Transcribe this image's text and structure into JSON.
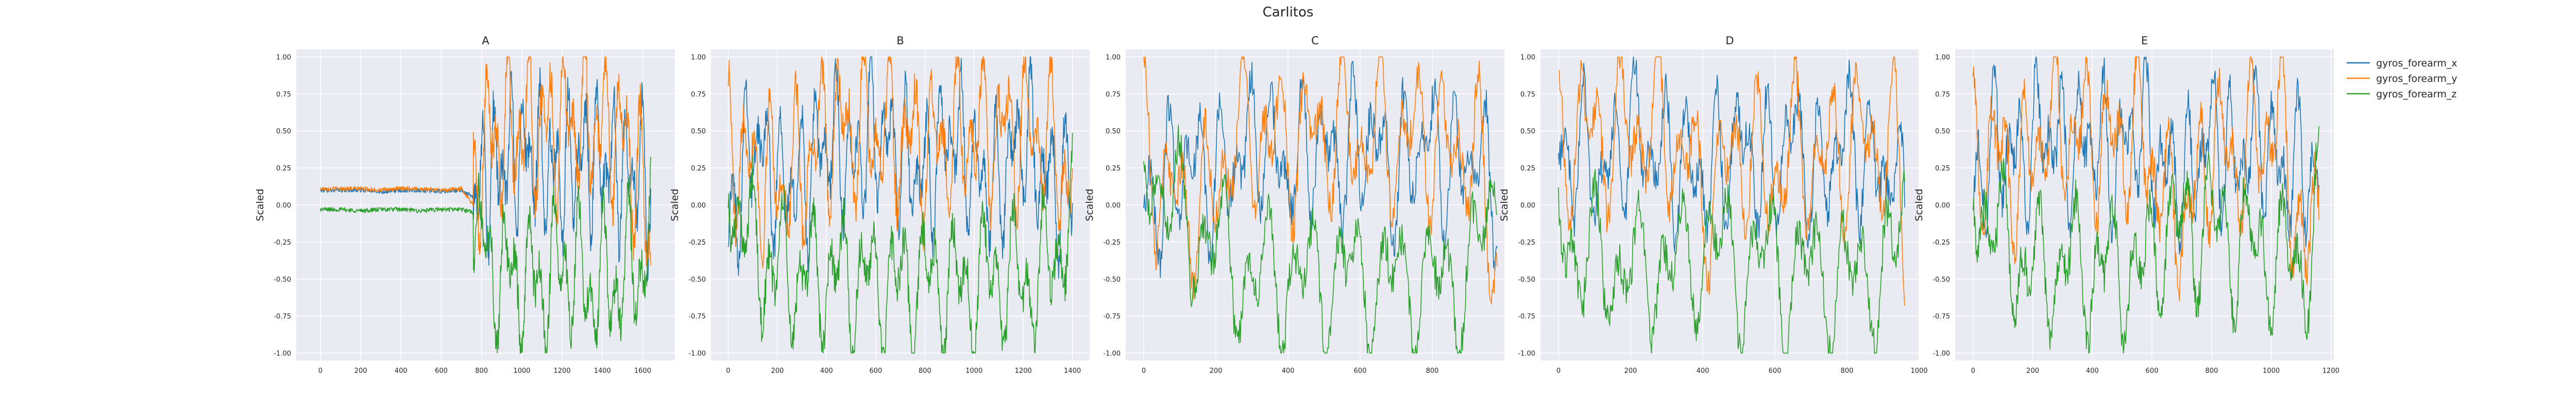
{
  "figure_title": "Carlitos",
  "colors": {
    "gyros_forearm_x": "#1f77b4",
    "gyros_forearm_y": "#ff7f0e",
    "gyros_forearm_z": "#2ca02c",
    "panel_background": "#eaeaf2",
    "grid": "#ffffff"
  },
  "legend": {
    "placement": "outside-right-top",
    "entries": [
      "gyros_forearm_x",
      "gyros_forearm_y",
      "gyros_forearm_z"
    ]
  },
  "chart_data": [
    {
      "type": "line",
      "title": "A",
      "xlabel": "",
      "ylabel": "Scaled",
      "n": 1640,
      "xlim": [
        -120,
        1760
      ],
      "ylim": [
        -1.05,
        1.05
      ],
      "grid": true,
      "xticks": [
        0,
        200,
        400,
        600,
        800,
        1000,
        1200,
        1400,
        1600
      ],
      "yticks": [
        -1.0,
        -0.75,
        -0.5,
        -0.25,
        0.0,
        0.25,
        0.5,
        0.75,
        1.0
      ],
      "series": [
        {
          "name": "gyros_forearm_x",
          "x": [
            0,
            100,
            200,
            300,
            400,
            500,
            600,
            700,
            760,
            800,
            900,
            1000,
            1100,
            1200,
            1300,
            1400,
            1500,
            1600,
            1640
          ],
          "y": [
            0.1,
            0.1,
            0.1,
            0.09,
            0.1,
            0.1,
            0.09,
            0.1,
            0.05,
            0.3,
            0.5,
            0.7,
            0.5,
            0.4,
            0.6,
            0.5,
            0.45,
            0.4,
            0.0
          ]
        },
        {
          "name": "gyros_forearm_y",
          "x": [
            0,
            100,
            200,
            300,
            400,
            500,
            600,
            700,
            760,
            800,
            900,
            1000,
            1100,
            1200,
            1300,
            1400,
            1500,
            1600,
            1640
          ],
          "y": [
            0.11,
            0.11,
            0.11,
            0.1,
            0.11,
            0.11,
            0.1,
            0.11,
            0.0,
            0.75,
            0.85,
            1.0,
            0.95,
            1.0,
            1.0,
            0.95,
            0.9,
            0.2,
            -0.6
          ]
        },
        {
          "name": "gyros_forearm_z",
          "x": [
            0,
            100,
            200,
            300,
            400,
            500,
            600,
            700,
            760,
            800,
            900,
            1000,
            1100,
            1200,
            1300,
            1400,
            1500,
            1600,
            1640
          ],
          "y": [
            -0.03,
            -0.03,
            -0.04,
            -0.03,
            -0.03,
            -0.04,
            -0.03,
            -0.03,
            -0.05,
            -0.6,
            -0.85,
            -0.9,
            -0.95,
            -0.7,
            -0.95,
            -1.0,
            -0.9,
            -0.7,
            0.0
          ]
        }
      ]
    },
    {
      "type": "line",
      "title": "B",
      "xlabel": "",
      "ylabel": "Scaled",
      "n": 1400,
      "xlim": [
        -70,
        1470
      ],
      "ylim": [
        -1.05,
        1.05
      ],
      "grid": true,
      "xticks": [
        0,
        200,
        400,
        600,
        800,
        1000,
        1200,
        1400
      ],
      "yticks": [
        -1.0,
        -0.75,
        -0.5,
        -0.25,
        0.0,
        0.25,
        0.5,
        0.75,
        1.0
      ],
      "series": [
        {
          "name": "gyros_forearm_x",
          "x": [
            0,
            100,
            200,
            300,
            400,
            500,
            600,
            700,
            800,
            900,
            1000,
            1100,
            1200,
            1300,
            1400
          ],
          "y": [
            -0.3,
            0.9,
            0.3,
            0.25,
            0.85,
            0.5,
            0.9,
            0.6,
            0.3,
            0.95,
            0.4,
            0.2,
            0.9,
            0.3,
            0.2
          ]
        },
        {
          "name": "gyros_forearm_y",
          "x": [
            0,
            100,
            200,
            300,
            400,
            500,
            600,
            700,
            800,
            900,
            1000,
            1100,
            1200,
            1300,
            1400
          ],
          "y": [
            0.75,
            0.45,
            0.3,
            0.4,
            1.0,
            0.9,
            0.95,
            0.8,
            0.7,
            0.75,
            0.9,
            0.85,
            0.95,
            0.8,
            0.2
          ]
        },
        {
          "name": "gyros_forearm_z",
          "x": [
            0,
            100,
            200,
            300,
            400,
            500,
            600,
            700,
            800,
            900,
            1000,
            1100,
            1200,
            1300,
            1400
          ],
          "y": [
            0.4,
            -0.6,
            -0.8,
            -0.9,
            -0.85,
            -0.9,
            -0.95,
            -1.0,
            -0.9,
            -0.95,
            -1.0,
            -0.85,
            -1.0,
            -0.8,
            -0.1
          ]
        }
      ]
    },
    {
      "type": "line",
      "title": "C",
      "xlabel": "",
      "ylabel": "Scaled",
      "n": 980,
      "xlim": [
        -50,
        1000
      ],
      "ylim": [
        -1.05,
        1.05
      ],
      "grid": true,
      "xticks": [
        0,
        200,
        400,
        600,
        800
      ],
      "yticks": [
        -1.0,
        -0.75,
        -0.5,
        -0.25,
        0.0,
        0.25,
        0.5,
        0.75,
        1.0
      ],
      "series": [
        {
          "name": "gyros_forearm_x",
          "x": [
            0,
            60,
            120,
            180,
            250,
            330,
            400,
            470,
            550,
            620,
            700,
            780,
            850,
            920,
            960
          ],
          "y": [
            0.0,
            0.2,
            0.6,
            0.3,
            0.5,
            0.9,
            0.4,
            0.8,
            0.5,
            0.9,
            0.3,
            0.9,
            0.4,
            0.7,
            0.2
          ]
        },
        {
          "name": "gyros_forearm_y",
          "x": [
            0,
            60,
            120,
            180,
            250,
            330,
            400,
            470,
            550,
            620,
            700,
            780,
            850,
            920,
            960
          ],
          "y": [
            1.0,
            0.05,
            0.0,
            0.02,
            0.8,
            0.85,
            0.75,
            0.85,
            0.9,
            0.85,
            0.8,
            0.9,
            0.6,
            0.85,
            -0.55
          ]
        },
        {
          "name": "gyros_forearm_z",
          "x": [
            0,
            60,
            120,
            180,
            250,
            330,
            400,
            470,
            550,
            620,
            700,
            780,
            850,
            920,
            960
          ],
          "y": [
            0.8,
            0.1,
            -0.3,
            -0.35,
            -0.8,
            -0.9,
            -0.85,
            -0.95,
            -0.8,
            -0.9,
            -0.95,
            -0.9,
            -0.95,
            -0.75,
            -0.05
          ]
        }
      ]
    },
    {
      "type": "line",
      "title": "D",
      "xlabel": "",
      "ylabel": "Scaled",
      "n": 960,
      "xlim": [
        -50,
        1000
      ],
      "ylim": [
        -1.05,
        1.05
      ],
      "grid": true,
      "xticks": [
        0,
        200,
        400,
        600,
        800,
        1000
      ],
      "yticks": [
        -1.0,
        -0.75,
        -0.5,
        -0.25,
        0.0,
        0.25,
        0.5,
        0.75,
        1.0
      ],
      "series": [
        {
          "name": "gyros_forearm_x",
          "x": [
            0,
            60,
            120,
            200,
            280,
            350,
            420,
            500,
            580,
            650,
            720,
            800,
            870,
            930,
            960
          ],
          "y": [
            0.5,
            0.7,
            0.3,
            0.9,
            0.6,
            0.5,
            0.3,
            0.8,
            0.4,
            0.9,
            0.3,
            0.9,
            0.5,
            0.4,
            -0.1
          ]
        },
        {
          "name": "gyros_forearm_y",
          "x": [
            0,
            60,
            120,
            200,
            280,
            350,
            420,
            500,
            580,
            650,
            720,
            800,
            870,
            930,
            960
          ],
          "y": [
            0.6,
            1.0,
            0.8,
            0.9,
            1.0,
            0.6,
            0.05,
            0.8,
            0.3,
            0.7,
            0.5,
            0.8,
            0.75,
            0.8,
            -0.5
          ]
        },
        {
          "name": "gyros_forearm_z",
          "x": [
            0,
            60,
            120,
            200,
            280,
            350,
            420,
            500,
            580,
            650,
            720,
            800,
            870,
            930,
            960
          ],
          "y": [
            0.3,
            -0.9,
            -0.6,
            -0.9,
            -0.7,
            -0.8,
            -0.3,
            -0.85,
            -0.6,
            -0.9,
            -0.75,
            -0.95,
            -0.75,
            -0.85,
            0.2
          ]
        }
      ]
    },
    {
      "type": "line",
      "title": "E",
      "xlabel": "",
      "ylabel": "Scaled",
      "n": 1160,
      "xlim": [
        -60,
        1210
      ],
      "ylim": [
        -1.05,
        1.05
      ],
      "grid": true,
      "xticks": [
        0,
        200,
        400,
        600,
        800,
        1000,
        1200
      ],
      "yticks": [
        -1.0,
        -0.75,
        -0.5,
        -0.25,
        0.0,
        0.25,
        0.5,
        0.75,
        1.0
      ],
      "series": [
        {
          "name": "gyros_forearm_x",
          "x": [
            0,
            80,
            160,
            240,
            320,
            400,
            480,
            560,
            640,
            720,
            800,
            880,
            960,
            1040,
            1120,
            1160
          ],
          "y": [
            0.2,
            0.8,
            0.5,
            1.0,
            0.6,
            0.9,
            0.5,
            1.0,
            0.45,
            0.3,
            0.9,
            0.5,
            0.9,
            0.4,
            0.5,
            0.1
          ]
        },
        {
          "name": "gyros_forearm_y",
          "x": [
            0,
            80,
            160,
            240,
            320,
            400,
            480,
            560,
            640,
            720,
            800,
            880,
            960,
            1040,
            1120,
            1160
          ],
          "y": [
            0.8,
            0.6,
            0.3,
            1.0,
            0.9,
            0.85,
            0.7,
            0.9,
            0.1,
            -0.2,
            0.85,
            0.5,
            0.9,
            0.95,
            -0.9,
            0.3
          ]
        },
        {
          "name": "gyros_forearm_z",
          "x": [
            0,
            80,
            160,
            240,
            320,
            400,
            480,
            560,
            640,
            720,
            800,
            880,
            960,
            1040,
            1120,
            1160
          ],
          "y": [
            0.3,
            -0.4,
            -0.7,
            -0.85,
            -0.7,
            -0.8,
            -0.75,
            -0.85,
            -0.3,
            -0.3,
            -0.2,
            -0.5,
            -0.55,
            -0.75,
            -0.7,
            0.1
          ]
        }
      ]
    }
  ]
}
